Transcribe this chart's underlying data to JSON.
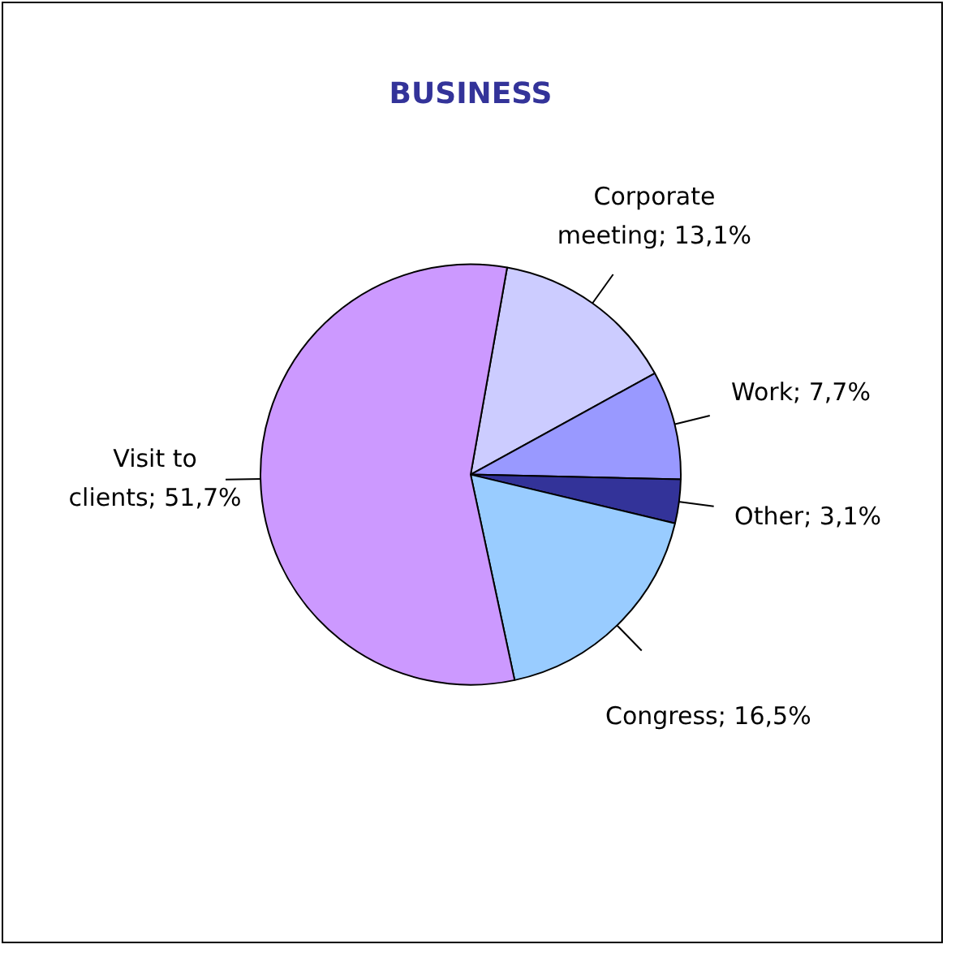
{
  "chart_data": {
    "type": "pie",
    "title": "BUSINESS",
    "categories": [
      "Corporate meeting",
      "Work",
      "Other",
      "Congress",
      "Visit to clients"
    ],
    "values": [
      13.1,
      7.7,
      3.1,
      16.5,
      51.7
    ],
    "value_labels": [
      "13,1%",
      "7,7%",
      "3,1%",
      "16,5%",
      "51,7%"
    ],
    "colors": [
      "#ccccff",
      "#9999ff",
      "#333399",
      "#99ccff",
      "#cc99ff"
    ],
    "legend": false
  }
}
